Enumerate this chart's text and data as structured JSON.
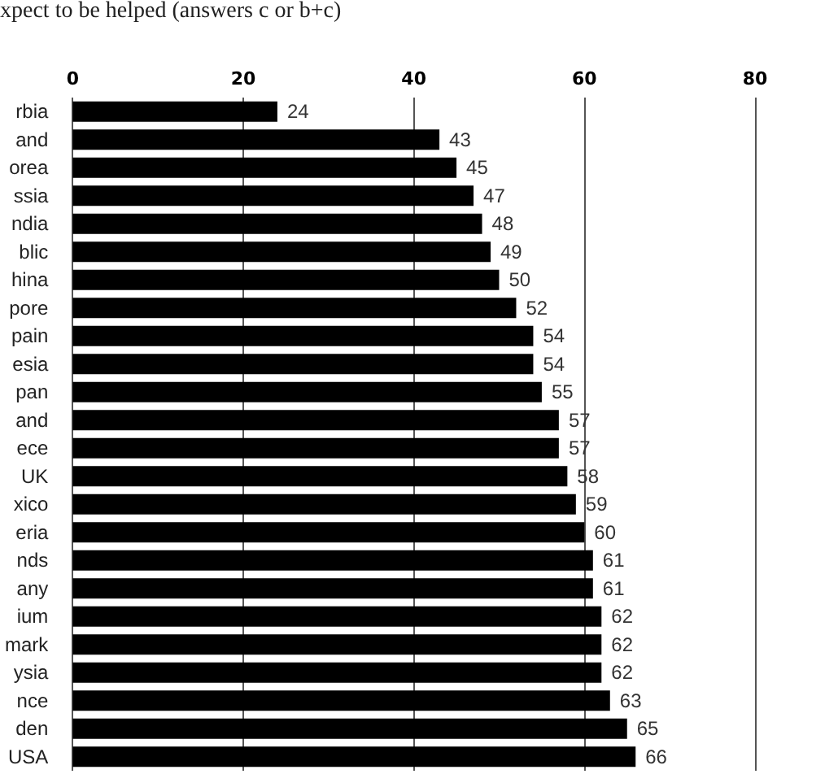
{
  "chart_data": {
    "type": "bar",
    "title": "xpect to be helped (answers c or b+c)",
    "orientation": "horizontal",
    "categories": [
      "rbia",
      "and",
      "orea",
      "ssia",
      "ndia",
      "blic",
      "hina",
      "pore",
      "pain",
      "esia",
      "pan",
      "and",
      "ece",
      "UK",
      "xico",
      "eria",
      "nds",
      "any",
      "ium",
      "mark",
      "ysia",
      "nce",
      "den",
      "USA"
    ],
    "values": [
      24,
      43,
      45,
      47,
      48,
      49,
      50,
      52,
      54,
      54,
      55,
      57,
      57,
      58,
      59,
      60,
      61,
      61,
      62,
      62,
      62,
      63,
      65,
      66
    ],
    "color": "#000000",
    "xlim": [
      0,
      80
    ],
    "xticks": [
      0,
      20,
      40,
      60,
      80
    ],
    "grid": "x",
    "data_labels": true
  }
}
